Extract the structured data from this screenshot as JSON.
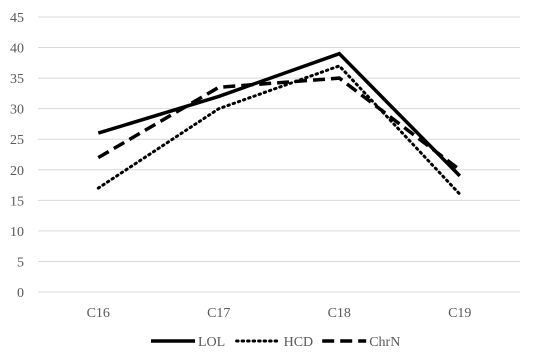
{
  "chart_data": {
    "type": "line",
    "title": "",
    "xlabel": "",
    "ylabel": "",
    "categories": [
      "C16",
      "C17",
      "C18",
      "C19"
    ],
    "ylim": [
      0,
      45
    ],
    "y_ticks": [
      0,
      5,
      10,
      15,
      20,
      25,
      30,
      35,
      40,
      45
    ],
    "grid": true,
    "legend_position": "bottom",
    "series": [
      {
        "name": "LOL",
        "values": [
          26,
          32,
          39,
          19
        ],
        "color": "#000000",
        "dash": "solid"
      },
      {
        "name": "HCD",
        "values": [
          17,
          30,
          37,
          16
        ],
        "color": "#000000",
        "dash": "dotted"
      },
      {
        "name": "ChrN",
        "values": [
          22,
          33.5,
          35,
          20
        ],
        "color": "#000000",
        "dash": "dashed"
      }
    ]
  }
}
